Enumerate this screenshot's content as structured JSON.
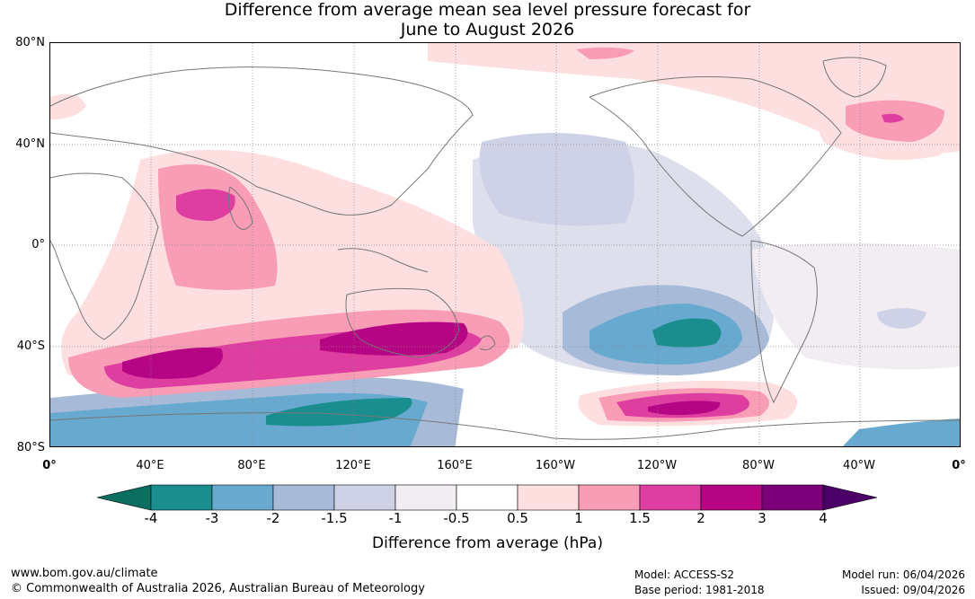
{
  "title_line1": "Difference from average mean sea level pressure forecast for",
  "title_line2": "June to August 2026",
  "lat_labels": [
    "80°N",
    "40°N",
    "0°",
    "40°S",
    "80°S"
  ],
  "lon_labels": [
    "0°",
    "40°E",
    "80°E",
    "120°E",
    "160°E",
    "160°W",
    "120°W",
    "80°W",
    "40°W",
    "0°"
  ],
  "colorbar": {
    "title": "Difference from average (hPa)",
    "ticks": [
      "-4",
      "-3",
      "-2",
      "-1.5",
      "-1",
      "-0.5",
      "0.5",
      "1",
      "1.5",
      "2",
      "3",
      "4"
    ],
    "colors": [
      "#1a8e8f",
      "#67a9cf",
      "#a7bbd8",
      "#cfd2e6",
      "#f2ecf3",
      "#ffffff",
      "#fddfdf",
      "#f99cb6",
      "#de3ea0",
      "#b50584",
      "#7b0179"
    ],
    "under_color": "#0b6e5e",
    "over_color": "#4a0066"
  },
  "footer": {
    "website": "www.bom.gov.au/climate",
    "copyright": "© Commonwealth of Australia 2026, Australian Bureau of Meteorology",
    "model": "Model: ACCESS-S2",
    "base_period": "Base period: 1981-2018",
    "model_run": "Model run: 06/04/2026",
    "issued": "Issued: 09/04/2026"
  },
  "icons": {
    "coastline": "coastline-outline"
  }
}
